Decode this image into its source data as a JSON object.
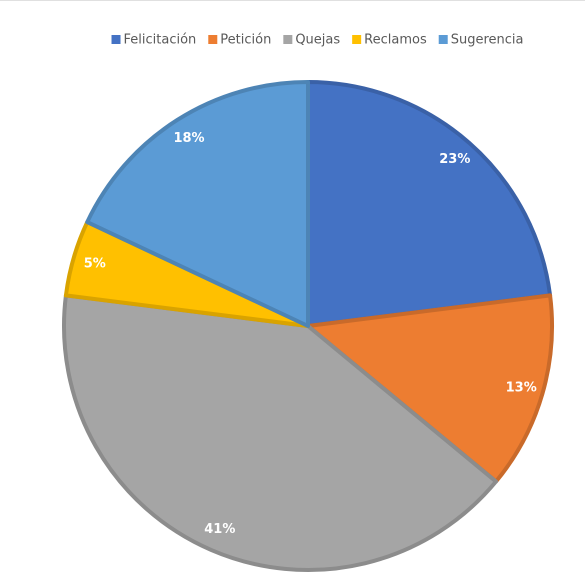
{
  "chart_data": {
    "type": "pie",
    "categories": [
      "Felicitación",
      "Petición",
      "Quejas",
      "Reclamos",
      "Sugerencia"
    ],
    "values": [
      23,
      13,
      41,
      5,
      18
    ],
    "value_labels": [
      "23%",
      "13%",
      "41%",
      "5%",
      "18%"
    ],
    "colors": [
      "#4472c4",
      "#ed7d31",
      "#a5a5a5",
      "#ffc000",
      "#5b9bd5"
    ],
    "legend": "top"
  }
}
